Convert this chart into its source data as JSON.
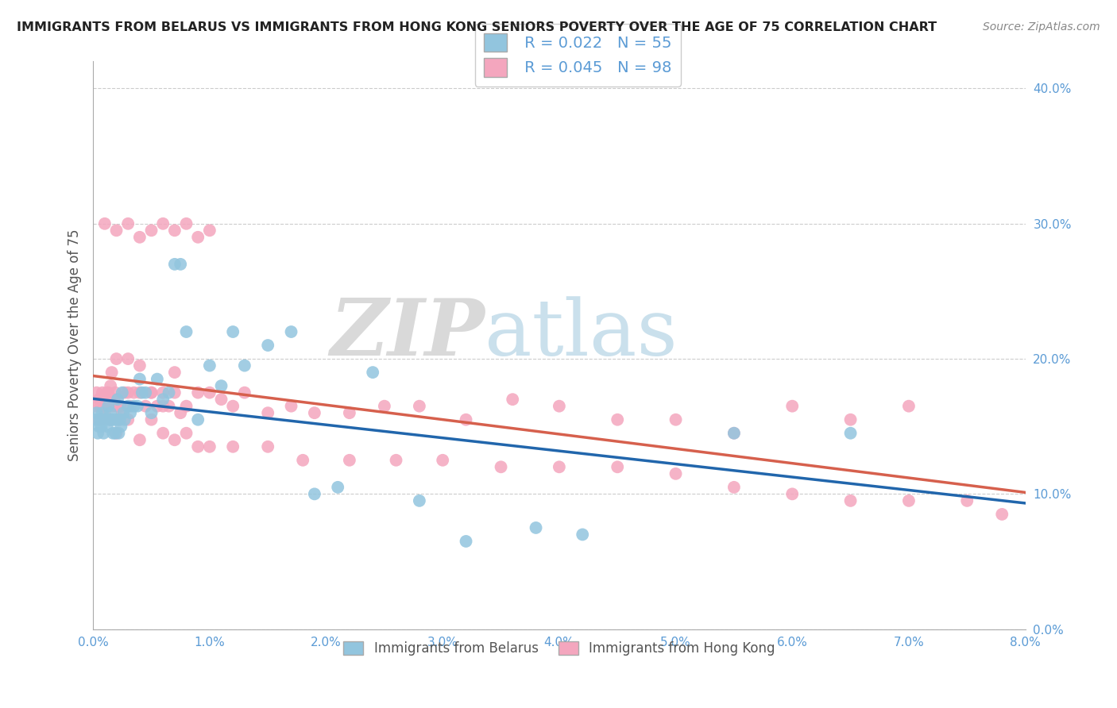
{
  "title": "IMMIGRANTS FROM BELARUS VS IMMIGRANTS FROM HONG KONG SENIORS POVERTY OVER THE AGE OF 75 CORRELATION CHART",
  "source": "Source: ZipAtlas.com",
  "ylabel": "Seniors Poverty Over the Age of 75",
  "watermark_zip": "ZIP",
  "watermark_atlas": "atlas",
  "legend_label_belarus": "Immigrants from Belarus",
  "legend_label_hongkong": "Immigrants from Hong Kong",
  "legend_r_belarus": "R = 0.022",
  "legend_n_belarus": "N = 55",
  "legend_r_hongkong": "R = 0.045",
  "legend_n_hongkong": "N = 98",
  "xlim": [
    0.0,
    0.08
  ],
  "ylim": [
    0.0,
    0.42
  ],
  "xticks": [
    0.0,
    0.01,
    0.02,
    0.03,
    0.04,
    0.05,
    0.06,
    0.07,
    0.08
  ],
  "xticklabels": [
    "0.0%",
    "1.0%",
    "2.0%",
    "3.0%",
    "4.0%",
    "5.0%",
    "6.0%",
    "7.0%",
    "8.0%"
  ],
  "yticks": [
    0.0,
    0.1,
    0.2,
    0.3,
    0.4
  ],
  "yticklabels": [
    "0.0%",
    "10.0%",
    "20.0%",
    "30.0%",
    "40.0%"
  ],
  "color_belarus": "#92c5de",
  "color_hongkong": "#f4a6be",
  "trendline_color_belarus": "#2166ac",
  "trendline_color_hongkong": "#d6604d",
  "background_color": "#ffffff",
  "grid_color": "#cccccc",
  "tick_color": "#5b9bd5",
  "belarus_x": [
    0.0002,
    0.0003,
    0.0004,
    0.0005,
    0.0006,
    0.0007,
    0.0008,
    0.0009,
    0.001,
    0.0012,
    0.0013,
    0.0014,
    0.0015,
    0.0016,
    0.0017,
    0.0018,
    0.0019,
    0.002,
    0.0021,
    0.0022,
    0.0023,
    0.0024,
    0.0025,
    0.0026,
    0.0027,
    0.003,
    0.0032,
    0.0035,
    0.0038,
    0.004,
    0.0042,
    0.0045,
    0.005,
    0.0055,
    0.006,
    0.0065,
    0.007,
    0.0075,
    0.008,
    0.009,
    0.01,
    0.011,
    0.012,
    0.013,
    0.015,
    0.017,
    0.019,
    0.021,
    0.024,
    0.028,
    0.032,
    0.038,
    0.042,
    0.055,
    0.065
  ],
  "belarus_y": [
    0.155,
    0.16,
    0.145,
    0.15,
    0.155,
    0.15,
    0.16,
    0.145,
    0.155,
    0.15,
    0.165,
    0.155,
    0.16,
    0.155,
    0.145,
    0.155,
    0.145,
    0.155,
    0.17,
    0.145,
    0.155,
    0.15,
    0.175,
    0.16,
    0.155,
    0.165,
    0.16,
    0.165,
    0.165,
    0.185,
    0.175,
    0.175,
    0.16,
    0.185,
    0.17,
    0.175,
    0.27,
    0.27,
    0.22,
    0.155,
    0.195,
    0.18,
    0.22,
    0.195,
    0.21,
    0.22,
    0.1,
    0.105,
    0.19,
    0.095,
    0.065,
    0.075,
    0.07,
    0.145,
    0.145
  ],
  "hongkong_x": [
    0.0002,
    0.0003,
    0.0004,
    0.0005,
    0.0006,
    0.0007,
    0.0008,
    0.001,
    0.0012,
    0.0013,
    0.0014,
    0.0015,
    0.0016,
    0.0017,
    0.0018,
    0.0019,
    0.002,
    0.0021,
    0.0022,
    0.0023,
    0.0025,
    0.0027,
    0.003,
    0.0032,
    0.0035,
    0.004,
    0.0045,
    0.005,
    0.0055,
    0.006,
    0.0065,
    0.007,
    0.0075,
    0.008,
    0.009,
    0.01,
    0.011,
    0.012,
    0.013,
    0.015,
    0.017,
    0.019,
    0.022,
    0.025,
    0.028,
    0.032,
    0.036,
    0.04,
    0.045,
    0.05,
    0.055,
    0.06,
    0.065,
    0.07,
    0.002,
    0.003,
    0.004,
    0.005,
    0.006,
    0.007,
    0.0005,
    0.001,
    0.0015,
    0.002,
    0.003,
    0.004,
    0.005,
    0.006,
    0.007,
    0.008,
    0.009,
    0.01,
    0.012,
    0.015,
    0.018,
    0.022,
    0.026,
    0.03,
    0.035,
    0.04,
    0.045,
    0.05,
    0.055,
    0.06,
    0.065,
    0.07,
    0.075,
    0.078,
    0.001,
    0.002,
    0.003,
    0.004,
    0.005,
    0.006,
    0.007,
    0.008,
    0.009,
    0.01
  ],
  "hongkong_y": [
    0.165,
    0.175,
    0.155,
    0.17,
    0.165,
    0.155,
    0.175,
    0.165,
    0.175,
    0.175,
    0.17,
    0.18,
    0.19,
    0.165,
    0.17,
    0.175,
    0.165,
    0.165,
    0.155,
    0.165,
    0.16,
    0.175,
    0.175,
    0.165,
    0.175,
    0.175,
    0.165,
    0.175,
    0.165,
    0.175,
    0.165,
    0.175,
    0.16,
    0.165,
    0.175,
    0.175,
    0.17,
    0.165,
    0.175,
    0.16,
    0.165,
    0.16,
    0.16,
    0.165,
    0.165,
    0.155,
    0.17,
    0.165,
    0.155,
    0.155,
    0.145,
    0.165,
    0.155,
    0.165,
    0.2,
    0.2,
    0.195,
    0.175,
    0.165,
    0.19,
    0.155,
    0.16,
    0.155,
    0.145,
    0.155,
    0.14,
    0.155,
    0.145,
    0.14,
    0.145,
    0.135,
    0.135,
    0.135,
    0.135,
    0.125,
    0.125,
    0.125,
    0.125,
    0.12,
    0.12,
    0.12,
    0.115,
    0.105,
    0.1,
    0.095,
    0.095,
    0.095,
    0.085,
    0.3,
    0.295,
    0.3,
    0.29,
    0.295,
    0.3,
    0.295,
    0.3,
    0.29,
    0.295
  ]
}
